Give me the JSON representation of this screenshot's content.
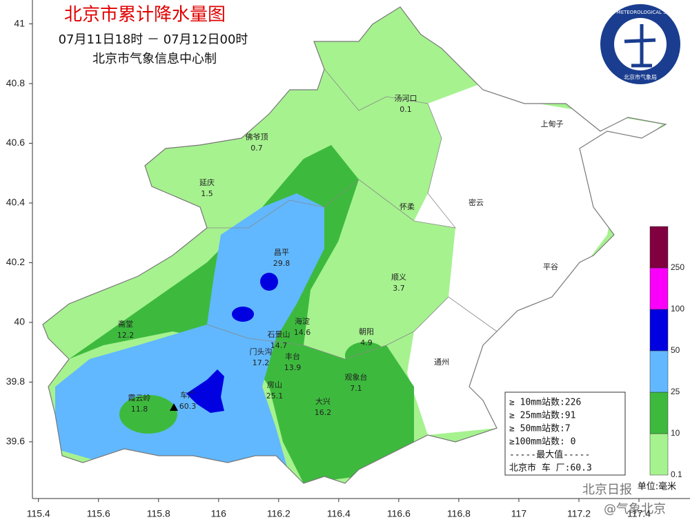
{
  "header": {
    "title": "北京市累计降水量图",
    "time_range": "07月11日18时 － 07月12日00时",
    "producer": "北京市气象信息中心制"
  },
  "logo": {
    "text": "BEIJING METEOROLOGICAL SERVICE",
    "subtext": "北京市气象局"
  },
  "map": {
    "xlim": [
      115.38,
      117.57
    ],
    "ylim": [
      39.41,
      41.08
    ],
    "xticks": [
      115.4,
      115.6,
      115.8,
      116,
      116.2,
      116.4,
      116.6,
      116.8,
      117,
      117.2,
      117.4
    ],
    "yticks": [
      39.6,
      39.8,
      40,
      40.2,
      40.4,
      40.6,
      40.8,
      41
    ]
  },
  "stations": [
    {
      "name": "汤河口",
      "value": 0.1
    },
    {
      "name": "佛爷顶",
      "value": 0.7
    },
    {
      "name": "延庆",
      "value": 1.5
    },
    {
      "name": "昌平",
      "value": 29.8
    },
    {
      "name": "怀柔"
    },
    {
      "name": "密云"
    },
    {
      "name": "上甸子"
    },
    {
      "name": "平谷"
    },
    {
      "name": "顺义",
      "value": 3.7
    },
    {
      "name": "海淀",
      "value": 14.6
    },
    {
      "name": "石景山",
      "value": 14.7
    },
    {
      "name": "朝阳",
      "value": 4.9
    },
    {
      "name": "门头沟",
      "value": 17.2
    },
    {
      "name": "丰台",
      "value": 13.9
    },
    {
      "name": "观象台",
      "value": 7.1
    },
    {
      "name": "通州"
    },
    {
      "name": "房山",
      "value": 25.1
    },
    {
      "name": "大兴",
      "value": 16.2
    },
    {
      "name": "霞云岭",
      "value": 11.8
    },
    {
      "name": "车厂",
      "value": 60.3
    },
    {
      "name": "斋堂",
      "value": 12.2
    }
  ],
  "stats": [
    "≥ 10mm站数:226",
    "≥ 25mm站数:91",
    "≥ 50mm站数:7",
    "≥100mm站数: 0",
    "-----最大值-----",
    "北京市 车 厂:60.3"
  ],
  "legend": {
    "levels": [
      0.1,
      10,
      25,
      50,
      100,
      250
    ],
    "colors": [
      "#a6f28f",
      "#3dba3d",
      "#61b8ff",
      "#0000e1",
      "#fa00fa",
      "#800040"
    ],
    "unit": "单位:毫米"
  },
  "watermark": [
    "北京日报",
    "@气象北京"
  ]
}
